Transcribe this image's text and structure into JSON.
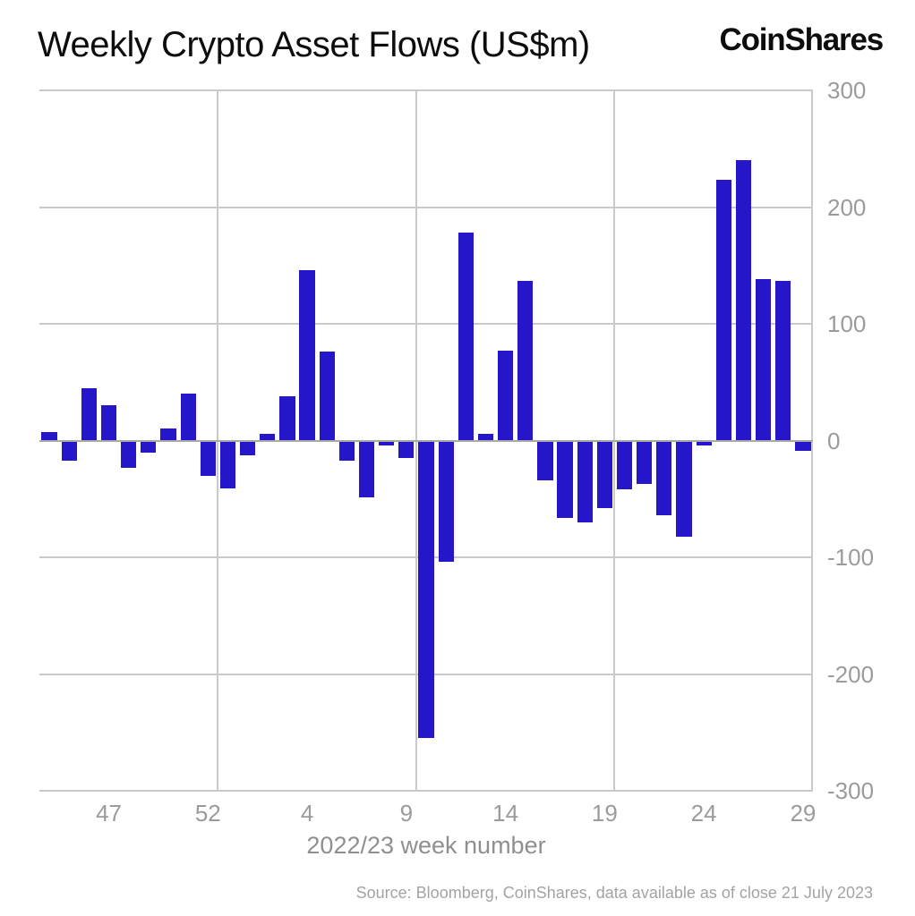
{
  "header": {
    "title": "Weekly Crypto Asset Flows (US$m)",
    "logo_text": "CoinShares"
  },
  "chart_data": {
    "type": "bar",
    "title": "Weekly Crypto Asset Flows (US$m)",
    "xlabel": "2022/23 week number",
    "ylabel": "",
    "ylim": [
      -300,
      300
    ],
    "grid": true,
    "legend": false,
    "bar_color": "#2517C9",
    "categories": [
      "44",
      "45",
      "46",
      "47",
      "48",
      "49",
      "50",
      "51",
      "52",
      "53",
      "1",
      "2",
      "3",
      "4",
      "5",
      "6",
      "7",
      "8",
      "9",
      "10",
      "11",
      "12",
      "13",
      "14",
      "15",
      "16",
      "17",
      "18",
      "19",
      "20",
      "21",
      "22",
      "23",
      "24",
      "25",
      "26",
      "27",
      "28",
      "29"
    ],
    "values": [
      7,
      -17,
      45,
      30,
      -23,
      -10,
      10,
      40,
      -30,
      -41,
      -13,
      6,
      38,
      146,
      76,
      -17,
      -49,
      -4,
      -15,
      -255,
      -104,
      178,
      6,
      77,
      137,
      -34,
      -66,
      -70,
      -58,
      -42,
      -37,
      -64,
      -82,
      -4,
      223,
      240,
      138,
      137,
      -9
    ],
    "y_ticks": [
      300,
      200,
      100,
      0,
      -100,
      -200,
      -300
    ],
    "x_ticks": [
      {
        "label": "47",
        "bar_index": 3
      },
      {
        "label": "52",
        "bar_index": 8
      },
      {
        "label": "4",
        "bar_index": 13
      },
      {
        "label": "9",
        "bar_index": 18
      },
      {
        "label": "14",
        "bar_index": 23
      },
      {
        "label": "19",
        "bar_index": 28
      },
      {
        "label": "24",
        "bar_index": 33
      },
      {
        "label": "29",
        "bar_index": 38
      }
    ],
    "v_gridline_bar_boundaries": [
      9,
      19,
      29
    ]
  },
  "footer": {
    "source": "Source: Bloomberg, CoinShares, data available as of close 21 July 2023"
  }
}
